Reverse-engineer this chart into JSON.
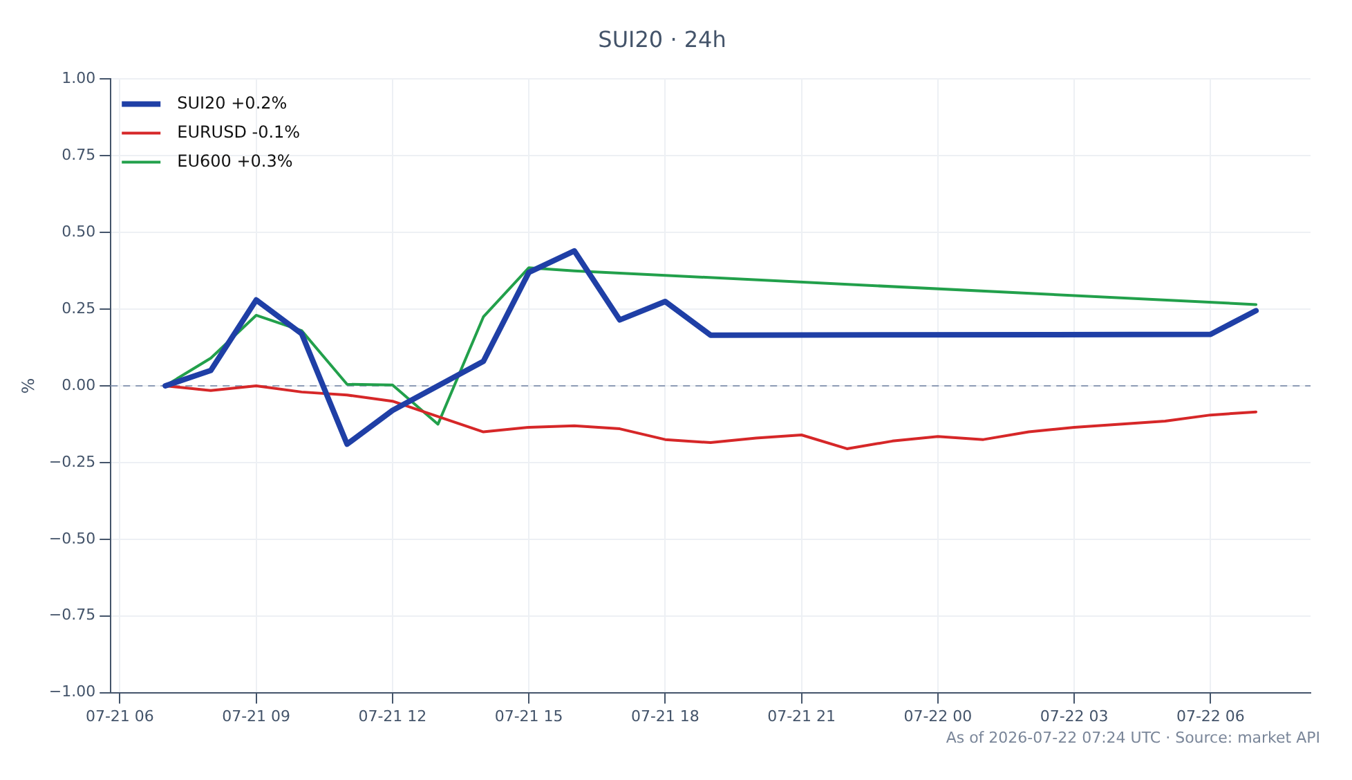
{
  "chart_data": {
    "type": "line",
    "title": "SUI20 · 24h",
    "ylabel": "%",
    "series": [
      {
        "name": "SUI20 +0.2%",
        "color": "#1f3fa6",
        "x": [
          "2026-07-21T07:00",
          "2026-07-21T08:00",
          "2026-07-21T09:00",
          "2026-07-21T10:00",
          "2026-07-21T11:00",
          "2026-07-21T12:00",
          "2026-07-21T13:00",
          "2026-07-21T14:00",
          "2026-07-21T15:00",
          "2026-07-21T16:00",
          "2026-07-21T17:00",
          "2026-07-21T18:00",
          "2026-07-21T19:00",
          "2026-07-22T06:00",
          "2026-07-22T07:00"
        ],
        "values": [
          0,
          0.05,
          0.28,
          0.17,
          -0.19,
          -0.08,
          0,
          0.08,
          0.37,
          0.44,
          0.215,
          0.275,
          0.165,
          0.168,
          0.245
        ]
      },
      {
        "name": "EURUSD -0.1%",
        "color": "#d62728",
        "x": [
          "2026-07-21T07:00",
          "2026-07-21T08:00",
          "2026-07-21T09:00",
          "2026-07-21T10:00",
          "2026-07-21T11:00",
          "2026-07-21T12:00",
          "2026-07-21T13:00",
          "2026-07-21T14:00",
          "2026-07-21T15:00",
          "2026-07-21T16:00",
          "2026-07-21T17:00",
          "2026-07-21T18:00",
          "2026-07-21T19:00",
          "2026-07-21T20:00",
          "2026-07-21T21:00",
          "2026-07-21T22:00",
          "2026-07-21T23:00",
          "2026-07-22T00:00",
          "2026-07-22T01:00",
          "2026-07-22T02:00",
          "2026-07-22T03:00",
          "2026-07-22T04:00",
          "2026-07-22T05:00",
          "2026-07-22T06:00",
          "2026-07-22T07:00"
        ],
        "values": [
          0,
          -0.015,
          0,
          -0.02,
          -0.03,
          -0.05,
          -0.1,
          -0.15,
          -0.135,
          -0.13,
          -0.14,
          -0.175,
          -0.185,
          -0.17,
          -0.16,
          -0.205,
          -0.18,
          -0.165,
          -0.175,
          -0.15,
          -0.135,
          -0.125,
          -0.115,
          -0.095,
          -0.085
        ]
      },
      {
        "name": "EU600 +0.3%",
        "color": "#22a04b",
        "x": [
          "2026-07-21T07:00",
          "2026-07-21T08:00",
          "2026-07-21T09:00",
          "2026-07-21T10:00",
          "2026-07-21T11:00",
          "2026-07-21T12:00",
          "2026-07-21T13:00",
          "2026-07-21T14:00",
          "2026-07-21T15:00",
          "2026-07-21T16:00",
          "2026-07-22T07:00"
        ],
        "values": [
          0,
          0.09,
          0.23,
          0.18,
          0.005,
          0.003,
          -0.125,
          0.225,
          0.385,
          0.375,
          0.265
        ]
      }
    ],
    "xlim": [
      "2026-07-21T05:48",
      "2026-07-22T08:12"
    ],
    "xticks": [
      {
        "value": "2026-07-21T06:00",
        "label": "07-21 06"
      },
      {
        "value": "2026-07-21T09:00",
        "label": "07-21 09"
      },
      {
        "value": "2026-07-21T12:00",
        "label": "07-21 12"
      },
      {
        "value": "2026-07-21T15:00",
        "label": "07-21 15"
      },
      {
        "value": "2026-07-21T18:00",
        "label": "07-21 18"
      },
      {
        "value": "2026-07-21T21:00",
        "label": "07-21 21"
      },
      {
        "value": "2026-07-22T00:00",
        "label": "07-22 00"
      },
      {
        "value": "2026-07-22T03:00",
        "label": "07-22 03"
      },
      {
        "value": "2026-07-22T06:00",
        "label": "07-22 06"
      }
    ],
    "ylim": [
      -1,
      1
    ],
    "yticks": [
      {
        "value": -1,
        "label": "−1.00"
      },
      {
        "value": -0.75,
        "label": "−0.75"
      },
      {
        "value": -0.5,
        "label": "−0.50"
      },
      {
        "value": -0.25,
        "label": "−0.25"
      },
      {
        "value": 0,
        "label": "0.00"
      },
      {
        "value": 0.25,
        "label": "0.25"
      },
      {
        "value": 0.5,
        "label": "0.50"
      },
      {
        "value": 0.75,
        "label": "0.75"
      },
      {
        "value": 1,
        "label": "1.00"
      }
    ],
    "ref_lines": [
      {
        "axis": "y",
        "value": 0,
        "color": "#8c9bb5",
        "line_style": "dashed"
      }
    ],
    "grid": true,
    "legend": "top left",
    "marker": "none",
    "line_style": "solid",
    "annotations": [
      "As of 2026-07-22 07:24 UTC · Source: market API"
    ]
  }
}
